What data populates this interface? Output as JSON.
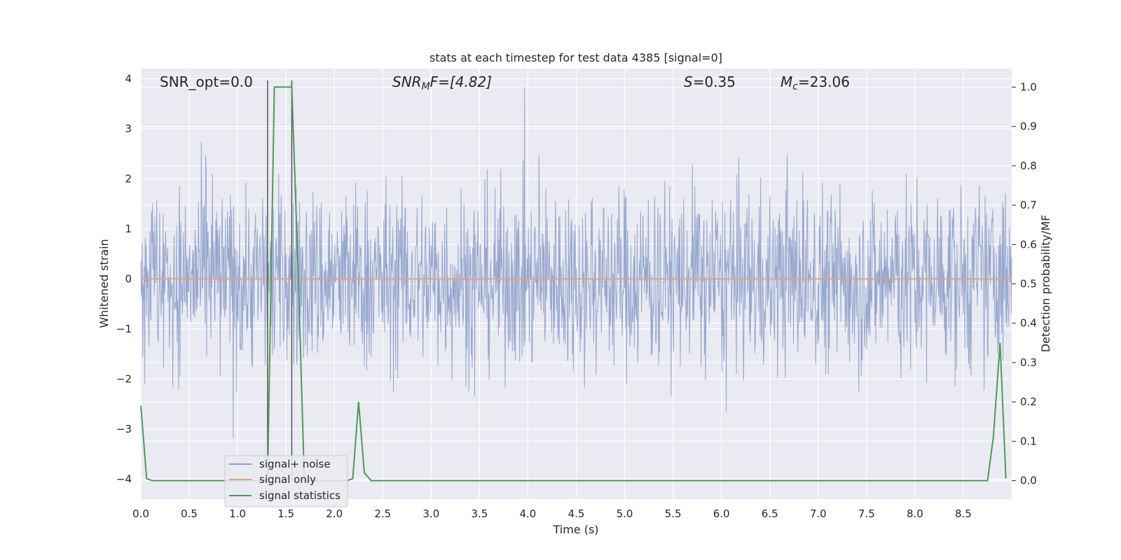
{
  "chart_data": {
    "type": "line",
    "title": "stats at each timestep for test data 4385 [signal=0]",
    "xlabel": "Time (s)",
    "ylabel_left": "Whitened strain",
    "ylabel_right": "Detection probability/MF",
    "xlim": [
      0.0,
      9.0
    ],
    "ylim_left": [
      -4.4,
      4.2
    ],
    "ylim_right": [
      -0.047,
      1.047
    ],
    "xticks": [
      "0.0",
      "0.5",
      "1.0",
      "1.5",
      "2.0",
      "2.5",
      "3.0",
      "3.5",
      "4.0",
      "4.5",
      "5.0",
      "5.5",
      "6.0",
      "6.5",
      "7.0",
      "7.5",
      "8.0",
      "8.5"
    ],
    "yticks_left": [
      "−4",
      "−3",
      "−2",
      "−1",
      "0",
      "1",
      "2",
      "3",
      "4"
    ],
    "yticks_right": [
      "0.0",
      "0.1",
      "0.2",
      "0.3",
      "0.4",
      "0.5",
      "0.6",
      "0.7",
      "0.8",
      "0.9",
      "1.0"
    ],
    "grid": true,
    "legend_position": "lower-left",
    "annotations": {
      "snr_opt": "SNR_opt=0.0",
      "snr_mf_base": "SNR",
      "snr_mf_sub": "M",
      "snr_mf_rest": "F=[4.82]",
      "s_base": "S",
      "s_rest": "=0.35",
      "mc_base": "M",
      "mc_sub": "c",
      "mc_rest": "=23.06"
    },
    "vlines_x": [
      1.31,
      1.56
    ],
    "series": [
      {
        "name": "signal+ noise",
        "color": "#8da0cb",
        "axis": "left",
        "description_range": [
          -3.8,
          3.9
        ]
      },
      {
        "name": "signal only",
        "color": "#e8a07a",
        "axis": "left",
        "x": [
          0.0,
          9.0
        ],
        "y": [
          0.0,
          0.0
        ]
      },
      {
        "name": "signal statistics",
        "color": "#4d9a5a",
        "axis": "right",
        "x": [
          0.0,
          0.06,
          0.12,
          0.2,
          1.25,
          1.31,
          1.38,
          1.56,
          1.63,
          1.69,
          2.13,
          2.19,
          2.25,
          2.31,
          2.38,
          2.44,
          8.69,
          8.75,
          8.81,
          8.88,
          8.94
        ],
        "y": [
          0.19,
          0.005,
          0.0,
          0.0,
          0.0,
          0.0,
          1.0,
          1.0,
          0.5,
          0.0,
          0.0,
          0.005,
          0.2,
          0.02,
          0.0,
          0.0,
          0.0,
          0.0,
          0.11,
          0.35,
          0.005
        ]
      }
    ]
  }
}
